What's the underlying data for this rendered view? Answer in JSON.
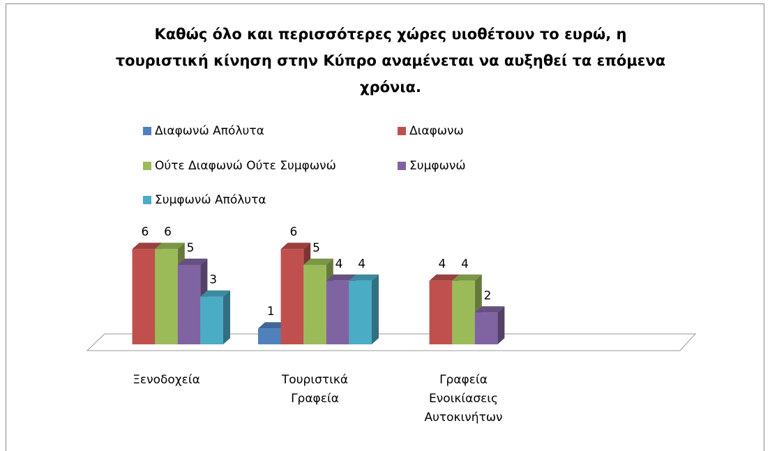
{
  "chart_data": {
    "type": "bar3d",
    "title": "Καθώς όλο και περισσότερες χώρες υιοθέτουν το ευρώ, η τουριστική κίνηση στην Κύπρο αναμένεται να αυξηθεί τα επόμενα χρόνια.",
    "categories": [
      "Ξενοδοχεία",
      "Τουριστικά Γραφεία",
      "Γραφεία Ενοικίασεις Αυτοκινήτων"
    ],
    "series": [
      {
        "name": "Διαφωνώ Απόλυτα",
        "color": "#4f81bd",
        "values": [
          null,
          1,
          null
        ]
      },
      {
        "name": "Διαφωνω",
        "color": "#c0504d",
        "values": [
          6,
          6,
          4
        ]
      },
      {
        "name": "Ούτε Διαφωνώ Ούτε Συμφωνώ",
        "color": "#9bbb59",
        "values": [
          6,
          5,
          4
        ]
      },
      {
        "name": "Συμφωνώ",
        "color": "#8064a2",
        "values": [
          5,
          4,
          2
        ]
      },
      {
        "name": "Συμφωνώ Απόλυτα",
        "color": "#4bacc6",
        "values": [
          3,
          4,
          null
        ]
      }
    ],
    "legend": "top"
  }
}
